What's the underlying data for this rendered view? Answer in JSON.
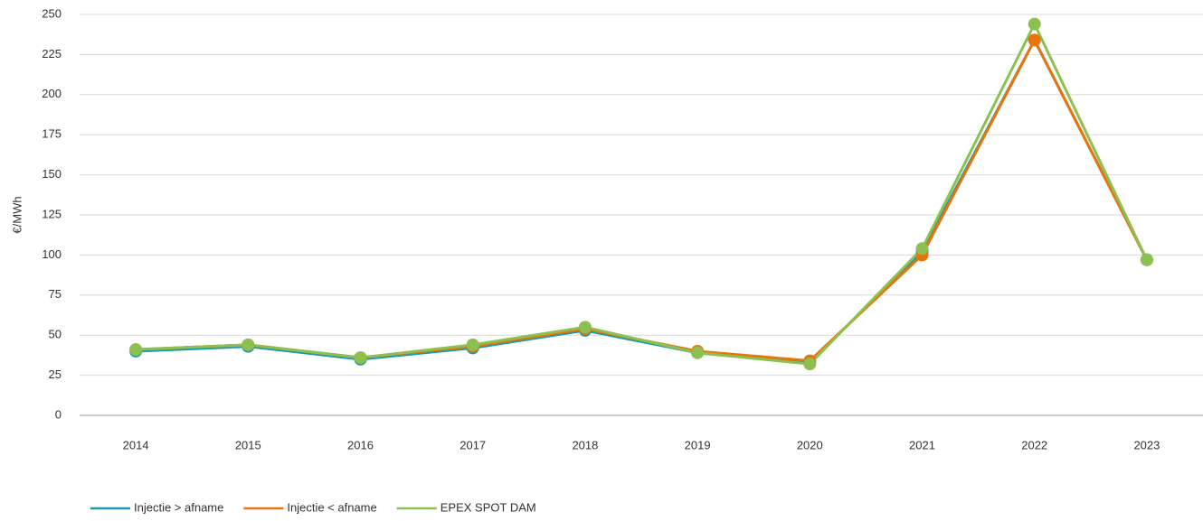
{
  "chart_data": {
    "type": "line",
    "y_label": "€/MWh",
    "categories": [
      "2014",
      "2015",
      "2016",
      "2017",
      "2018",
      "2019",
      "2020",
      "2021",
      "2022",
      "2023"
    ],
    "series": [
      {
        "name": "Injectie > afname",
        "color": "#1b9bb0",
        "values": [
          40,
          43,
          35,
          42,
          53,
          39,
          33,
          102,
          234,
          97
        ]
      },
      {
        "name": "Injectie < afname",
        "color": "#e8740c",
        "values": [
          41,
          44,
          36,
          43,
          54,
          40,
          34,
          100,
          234,
          97
        ]
      },
      {
        "name": "EPEX SPOT DAM",
        "color": "#8cc152",
        "values": [
          41,
          44,
          36,
          44,
          55,
          39,
          32,
          104,
          244,
          97
        ]
      }
    ],
    "ylim": [
      0,
      250
    ],
    "yticks": [
      0,
      25,
      50,
      75,
      100,
      125,
      150,
      175,
      200,
      225,
      250
    ],
    "grid": true,
    "legend": "bottom-left"
  }
}
